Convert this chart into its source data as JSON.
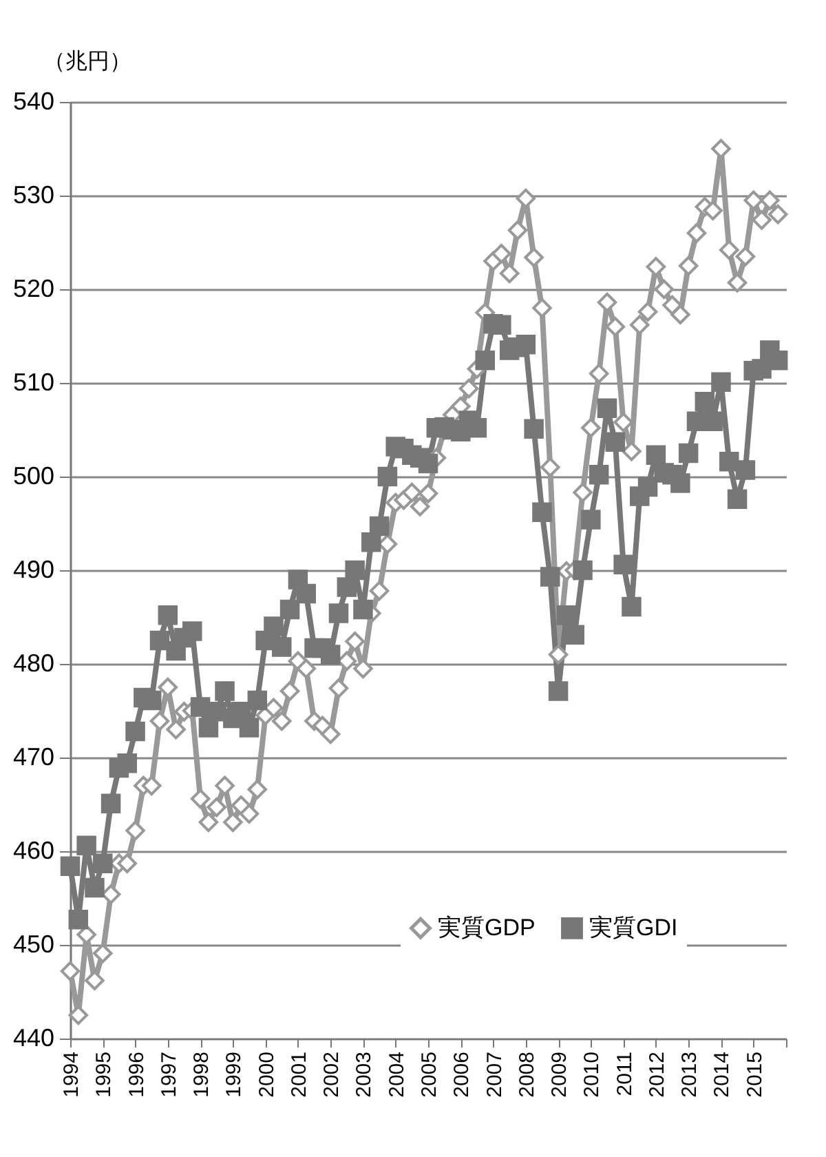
{
  "chart_data": {
    "type": "line",
    "ylabel": "（兆円）",
    "x": [
      1994,
      1994.25,
      1994.5,
      1994.75,
      1995,
      1995.25,
      1995.5,
      1995.75,
      1996,
      1996.25,
      1996.5,
      1996.75,
      1997,
      1997.25,
      1997.5,
      1997.75,
      1998,
      1998.25,
      1998.5,
      1998.75,
      1999,
      1999.25,
      1999.5,
      1999.75,
      2000,
      2000.25,
      2000.5,
      2000.75,
      2001,
      2001.25,
      2001.5,
      2001.75,
      2002,
      2002.25,
      2002.5,
      2002.75,
      2003,
      2003.25,
      2003.5,
      2003.75,
      2004,
      2004.25,
      2004.5,
      2004.75,
      2005,
      2005.25,
      2005.5,
      2005.75,
      2006,
      2006.25,
      2006.5,
      2006.75,
      2007,
      2007.25,
      2007.5,
      2007.75,
      2008,
      2008.25,
      2008.5,
      2008.75,
      2009,
      2009.25,
      2009.5,
      2009.75,
      2010,
      2010.25,
      2010.5,
      2010.75,
      2011,
      2011.25,
      2011.5,
      2011.75,
      2012,
      2012.25,
      2012.5,
      2012.75,
      2013,
      2013.25,
      2013.5,
      2013.75,
      2014,
      2014.25,
      2014.5,
      2014.75,
      2015,
      2015.25,
      2015.5,
      2015.75
    ],
    "series": [
      {
        "name": "実質GDP",
        "color": "#999999",
        "marker": "diamond",
        "values": [
          447.2,
          442.5,
          451.1,
          446.2,
          449.1,
          455.4,
          458.7,
          458.7,
          462.2,
          467,
          467,
          473.9,
          477.5,
          473,
          474.9,
          475,
          465.6,
          463.1,
          464.7,
          467,
          463.1,
          464.9,
          464,
          466.6,
          474.5,
          475.3,
          473.9,
          477.1,
          480.3,
          479.5,
          473.9,
          473.4,
          472.5,
          477.4,
          480.3,
          482.4,
          479.5,
          485.4,
          487.8,
          492.8,
          497.2,
          497.5,
          498.3,
          496.8,
          498.2,
          502,
          505,
          506.6,
          507.5,
          509.4,
          511.5,
          517.5,
          523,
          523.8,
          521.7,
          526.3,
          529.7,
          523.4,
          518,
          501,
          481,
          489.9,
          490,
          498.3,
          505.2,
          511,
          518.6,
          516,
          505.8,
          502.7,
          516.2,
          517.6,
          522.4,
          520,
          518.3,
          517.3,
          522.5,
          526,
          528.8,
          528.4,
          535,
          524.2,
          520.7,
          523.5,
          529.5,
          527.4,
          529.5,
          528
        ]
      },
      {
        "name": "実質GDI",
        "color": "#777777",
        "marker": "square",
        "values": [
          458.4,
          452.7,
          460.6,
          456.1,
          458.7,
          465.1,
          468.9,
          469.4,
          472.8,
          476.4,
          476.1,
          482.5,
          485.2,
          481.4,
          482.8,
          483.5,
          475.4,
          473.2,
          474.9,
          477.1,
          474.2,
          474.9,
          473.2,
          476.1,
          482.5,
          484,
          481.8,
          485.8,
          489,
          487.5,
          481.7,
          481.7,
          481,
          485.4,
          488.2,
          490,
          485.8,
          493,
          494.7,
          500,
          503.2,
          503,
          502.3,
          502,
          501.4,
          505.2,
          505.3,
          505,
          504.8,
          506,
          505.2,
          512.4,
          516.3,
          516.2,
          513.5,
          513.8,
          514.1,
          505.1,
          496.2,
          489.3,
          477.1,
          485.2,
          483.1,
          490,
          495.4,
          500.2,
          507.3,
          503.7,
          490.6,
          486.1,
          497.9,
          498.9,
          502.3,
          500.4,
          500.2,
          499.3,
          502.5,
          505.9,
          508,
          505.9,
          510.1,
          501.6,
          497.6,
          500.7,
          511.3,
          511.5,
          513.5,
          512.4
        ]
      }
    ],
    "xlim": [
      1994,
      2016
    ],
    "xticks": [
      {
        "value": 1994,
        "label": "1994"
      },
      {
        "value": 1995,
        "label": "1995"
      },
      {
        "value": 1996,
        "label": "1996"
      },
      {
        "value": 1997,
        "label": "1997"
      },
      {
        "value": 1998,
        "label": "1998"
      },
      {
        "value": 1999,
        "label": "1999"
      },
      {
        "value": 2000,
        "label": "2000"
      },
      {
        "value": 2001,
        "label": "2001"
      },
      {
        "value": 2002,
        "label": "2002"
      },
      {
        "value": 2003,
        "label": "2003"
      },
      {
        "value": 2004,
        "label": "2004"
      },
      {
        "value": 2005,
        "label": "2005"
      },
      {
        "value": 2006,
        "label": "2006"
      },
      {
        "value": 2007,
        "label": "2007"
      },
      {
        "value": 2008,
        "label": "2008"
      },
      {
        "value": 2009,
        "label": "2009"
      },
      {
        "value": 2010,
        "label": "2010"
      },
      {
        "value": 2011,
        "label": "2011"
      },
      {
        "value": 2012,
        "label": "2012"
      },
      {
        "value": 2013,
        "label": "2013"
      },
      {
        "value": 2014,
        "label": "2014"
      },
      {
        "value": 2015,
        "label": "2015"
      },
      {
        "value": 2016,
        "label": null
      }
    ],
    "ylim": [
      440,
      540
    ],
    "yticks": [
      440,
      450,
      460,
      470,
      480,
      490,
      500,
      510,
      520,
      530,
      540
    ],
    "grid": "y",
    "legend": "bottom right",
    "line_style": "solid"
  }
}
